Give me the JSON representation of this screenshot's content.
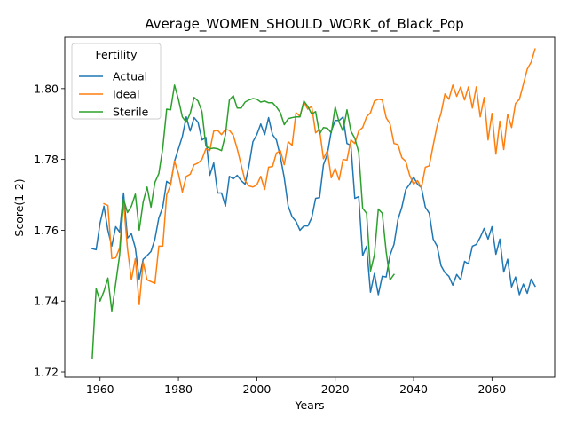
{
  "chart_data": {
    "type": "line",
    "title": "Average_WOMEN_SHOULD_WORK_of_Black_Pop",
    "xlabel": "Years",
    "ylabel": "Score(1-2)",
    "xlim": [
      1951,
      2076
    ],
    "ylim": [
      1.7185,
      1.8145
    ],
    "xticks": [
      1960,
      1980,
      2000,
      2020,
      2040,
      2060
    ],
    "yticks": [
      1.72,
      1.74,
      1.76,
      1.78,
      1.8
    ],
    "ytick_labels": [
      "1.72",
      "1.74",
      "1.76",
      "1.78",
      "1.80"
    ],
    "legend": {
      "title": "Fertility",
      "placement": "upper-left"
    },
    "grid": false,
    "series": [
      {
        "name": "Actual",
        "color": "#1f77b4",
        "points": [
          [
            1958,
            1.7548
          ],
          [
            1959,
            1.7545
          ],
          [
            1960,
            1.762
          ],
          [
            1961,
            1.7668
          ],
          [
            1962,
            1.76
          ],
          [
            1963,
            1.7555
          ],
          [
            1964,
            1.761
          ],
          [
            1965,
            1.7595
          ],
          [
            1966,
            1.7705
          ],
          [
            1967,
            1.7578
          ],
          [
            1968,
            1.759
          ],
          [
            1969,
            1.755
          ],
          [
            1970,
            1.7462
          ],
          [
            1971,
            1.7518
          ],
          [
            1972,
            1.7528
          ],
          [
            1973,
            1.754
          ],
          [
            1974,
            1.7575
          ],
          [
            1975,
            1.7635
          ],
          [
            1976,
            1.7665
          ],
          [
            1977,
            1.7738
          ],
          [
            1978,
            1.773
          ],
          [
            1979,
            1.7795
          ],
          [
            1980,
            1.783
          ],
          [
            1981,
            1.7865
          ],
          [
            1982,
            1.792
          ],
          [
            1983,
            1.788
          ],
          [
            1984,
            1.7918
          ],
          [
            1985,
            1.7905
          ],
          [
            1986,
            1.7855
          ],
          [
            1987,
            1.7862
          ],
          [
            1988,
            1.7755
          ],
          [
            1989,
            1.779
          ],
          [
            1990,
            1.7705
          ],
          [
            1991,
            1.7705
          ],
          [
            1992,
            1.7668
          ],
          [
            1993,
            1.7752
          ],
          [
            1994,
            1.7745
          ],
          [
            1995,
            1.7755
          ],
          [
            1996,
            1.774
          ],
          [
            1997,
            1.773
          ],
          [
            1998,
            1.7782
          ],
          [
            1999,
            1.785
          ],
          [
            2000,
            1.787
          ],
          [
            2001,
            1.79
          ],
          [
            2002,
            1.787
          ],
          [
            2003,
            1.7918
          ],
          [
            2004,
            1.787
          ],
          [
            2005,
            1.7855
          ],
          [
            2006,
            1.7808
          ],
          [
            2007,
            1.7748
          ],
          [
            2008,
            1.7668
          ],
          [
            2009,
            1.7638
          ],
          [
            2010,
            1.7625
          ],
          [
            2011,
            1.76
          ],
          [
            2012,
            1.7612
          ],
          [
            2013,
            1.7612
          ],
          [
            2014,
            1.7635
          ],
          [
            2015,
            1.769
          ],
          [
            2016,
            1.7692
          ],
          [
            2017,
            1.7785
          ],
          [
            2018,
            1.7815
          ],
          [
            2019,
            1.788
          ],
          [
            2020,
            1.791
          ],
          [
            2021,
            1.791
          ],
          [
            2022,
            1.792
          ],
          [
            2023,
            1.7845
          ],
          [
            2024,
            1.784
          ],
          [
            2025,
            1.769
          ],
          [
            2026,
            1.7695
          ],
          [
            2027,
            1.7528
          ],
          [
            2028,
            1.7555
          ],
          [
            2029,
            1.7425
          ],
          [
            2030,
            1.7478
          ],
          [
            2031,
            1.7418
          ],
          [
            2032,
            1.747
          ],
          [
            2033,
            1.7468
          ],
          [
            2034,
            1.753
          ],
          [
            2035,
            1.756
          ],
          [
            2036,
            1.763
          ],
          [
            2037,
            1.7665
          ],
          [
            2038,
            1.7715
          ],
          [
            2039,
            1.773
          ],
          [
            2040,
            1.775
          ],
          [
            2041,
            1.773
          ],
          [
            2042,
            1.772
          ],
          [
            2043,
            1.7665
          ],
          [
            2044,
            1.7648
          ],
          [
            2045,
            1.7575
          ],
          [
            2046,
            1.7555
          ],
          [
            2047,
            1.75
          ],
          [
            2048,
            1.748
          ],
          [
            2049,
            1.747
          ],
          [
            2050,
            1.7445
          ],
          [
            2051,
            1.7475
          ],
          [
            2052,
            1.746
          ],
          [
            2053,
            1.7512
          ],
          [
            2054,
            1.7505
          ],
          [
            2055,
            1.7555
          ],
          [
            2056,
            1.756
          ],
          [
            2057,
            1.758
          ],
          [
            2058,
            1.7605
          ],
          [
            2059,
            1.7575
          ],
          [
            2060,
            1.761
          ],
          [
            2061,
            1.7532
          ],
          [
            2062,
            1.7575
          ],
          [
            2063,
            1.7482
          ],
          [
            2064,
            1.7518
          ],
          [
            2065,
            1.744
          ],
          [
            2066,
            1.7468
          ],
          [
            2067,
            1.7418
          ],
          [
            2068,
            1.7448
          ],
          [
            2069,
            1.7422
          ],
          [
            2070,
            1.7462
          ],
          [
            2071,
            1.7442
          ]
        ]
      },
      {
        "name": "Ideal",
        "color": "#ff7f0e",
        "points": [
          [
            1961,
            1.7675
          ],
          [
            1962,
            1.767
          ],
          [
            1963,
            1.752
          ],
          [
            1964,
            1.7522
          ],
          [
            1965,
            1.755
          ],
          [
            1966,
            1.768
          ],
          [
            1967,
            1.7548
          ],
          [
            1968,
            1.746
          ],
          [
            1969,
            1.752
          ],
          [
            1970,
            1.739
          ],
          [
            1971,
            1.751
          ],
          [
            1972,
            1.746
          ],
          [
            1973,
            1.7455
          ],
          [
            1974,
            1.745
          ],
          [
            1975,
            1.7555
          ],
          [
            1976,
            1.7555
          ],
          [
            1977,
            1.77
          ],
          [
            1978,
            1.7728
          ],
          [
            1979,
            1.7795
          ],
          [
            1980,
            1.776
          ],
          [
            1981,
            1.7708
          ],
          [
            1982,
            1.7752
          ],
          [
            1983,
            1.7758
          ],
          [
            1984,
            1.7785
          ],
          [
            1985,
            1.779
          ],
          [
            1986,
            1.78
          ],
          [
            1987,
            1.783
          ],
          [
            1988,
            1.7825
          ],
          [
            1989,
            1.788
          ],
          [
            1990,
            1.7882
          ],
          [
            1991,
            1.787
          ],
          [
            1992,
            1.7885
          ],
          [
            1993,
            1.7882
          ],
          [
            1994,
            1.7868
          ],
          [
            1995,
            1.783
          ],
          [
            1996,
            1.7785
          ],
          [
            1997,
            1.774
          ],
          [
            1998,
            1.7725
          ],
          [
            1999,
            1.7722
          ],
          [
            2000,
            1.7728
          ],
          [
            2001,
            1.7752
          ],
          [
            2002,
            1.7715
          ],
          [
            2003,
            1.7778
          ],
          [
            2004,
            1.778
          ],
          [
            2005,
            1.7818
          ],
          [
            2006,
            1.7825
          ],
          [
            2007,
            1.7785
          ],
          [
            2008,
            1.785
          ],
          [
            2009,
            1.784
          ],
          [
            2010,
            1.7932
          ],
          [
            2011,
            1.7922
          ],
          [
            2012,
            1.7962
          ],
          [
            2013,
            1.7942
          ],
          [
            2014,
            1.795
          ],
          [
            2015,
            1.7875
          ],
          [
            2016,
            1.7885
          ],
          [
            2017,
            1.7802
          ],
          [
            2018,
            1.7825
          ],
          [
            2019,
            1.7748
          ],
          [
            2020,
            1.7775
          ],
          [
            2021,
            1.7742
          ],
          [
            2022,
            1.78
          ],
          [
            2023,
            1.7798
          ],
          [
            2024,
            1.7855
          ],
          [
            2025,
            1.7845
          ],
          [
            2026,
            1.788
          ],
          [
            2027,
            1.789
          ],
          [
            2028,
            1.792
          ],
          [
            2029,
            1.7932
          ],
          [
            2030,
            1.7965
          ],
          [
            2031,
            1.797
          ],
          [
            2032,
            1.7968
          ],
          [
            2033,
            1.7918
          ],
          [
            2034,
            1.79
          ],
          [
            2035,
            1.7845
          ],
          [
            2036,
            1.7842
          ],
          [
            2037,
            1.7805
          ],
          [
            2038,
            1.7795
          ],
          [
            2039,
            1.7755
          ],
          [
            2040,
            1.773
          ],
          [
            2041,
            1.774
          ],
          [
            2042,
            1.772
          ],
          [
            2043,
            1.7778
          ],
          [
            2044,
            1.7782
          ],
          [
            2045,
            1.784
          ],
          [
            2046,
            1.7895
          ],
          [
            2047,
            1.793
          ],
          [
            2048,
            1.7985
          ],
          [
            2049,
            1.797
          ],
          [
            2050,
            1.801
          ],
          [
            2051,
            1.7978
          ],
          [
            2052,
            1.8005
          ],
          [
            2053,
            1.7968
          ],
          [
            2054,
            1.8005
          ],
          [
            2055,
            1.7945
          ],
          [
            2056,
            1.8005
          ],
          [
            2057,
            1.792
          ],
          [
            2058,
            1.7975
          ],
          [
            2059,
            1.7855
          ],
          [
            2060,
            1.793
          ],
          [
            2061,
            1.7815
          ],
          [
            2062,
            1.7908
          ],
          [
            2063,
            1.7828
          ],
          [
            2064,
            1.7928
          ],
          [
            2065,
            1.789
          ],
          [
            2066,
            1.7958
          ],
          [
            2067,
            1.797
          ],
          [
            2068,
            1.8012
          ],
          [
            2069,
            1.8055
          ],
          [
            2070,
            1.8075
          ],
          [
            2071,
            1.8112
          ]
        ]
      },
      {
        "name": "Sterile",
        "color": "#2ca02c",
        "points": [
          [
            1958,
            1.7238
          ],
          [
            1959,
            1.7435
          ],
          [
            1960,
            1.74
          ],
          [
            1961,
            1.7428
          ],
          [
            1962,
            1.7465
          ],
          [
            1963,
            1.7372
          ],
          [
            1964,
            1.745
          ],
          [
            1965,
            1.753
          ],
          [
            1966,
            1.7688
          ],
          [
            1967,
            1.765
          ],
          [
            1968,
            1.7668
          ],
          [
            1969,
            1.7702
          ],
          [
            1970,
            1.76
          ],
          [
            1971,
            1.768
          ],
          [
            1972,
            1.7722
          ],
          [
            1973,
            1.7665
          ],
          [
            1974,
            1.7735
          ],
          [
            1975,
            1.776
          ],
          [
            1976,
            1.7832
          ],
          [
            1977,
            1.7942
          ],
          [
            1978,
            1.794
          ],
          [
            1979,
            1.801
          ],
          [
            1980,
            1.797
          ],
          [
            1981,
            1.792
          ],
          [
            1982,
            1.7905
          ],
          [
            1983,
            1.793
          ],
          [
            1984,
            1.7975
          ],
          [
            1985,
            1.7965
          ],
          [
            1986,
            1.7935
          ],
          [
            1987,
            1.7838
          ],
          [
            1988,
            1.783
          ],
          [
            1989,
            1.7832
          ],
          [
            1990,
            1.783
          ],
          [
            1991,
            1.7825
          ],
          [
            1992,
            1.787
          ],
          [
            1993,
            1.7968
          ],
          [
            1994,
            1.798
          ],
          [
            1995,
            1.7945
          ],
          [
            1996,
            1.7945
          ],
          [
            1997,
            1.7962
          ],
          [
            1998,
            1.7968
          ],
          [
            1999,
            1.7972
          ],
          [
            2000,
            1.797
          ],
          [
            2001,
            1.7962
          ],
          [
            2002,
            1.7965
          ],
          [
            2003,
            1.796
          ],
          [
            2004,
            1.796
          ],
          [
            2005,
            1.7948
          ],
          [
            2006,
            1.7932
          ],
          [
            2007,
            1.7898
          ],
          [
            2008,
            1.7915
          ],
          [
            2009,
            1.7918
          ],
          [
            2010,
            1.792
          ],
          [
            2011,
            1.792
          ],
          [
            2012,
            1.7965
          ],
          [
            2013,
            1.795
          ],
          [
            2014,
            1.7928
          ],
          [
            2015,
            1.7935
          ],
          [
            2016,
            1.7872
          ],
          [
            2017,
            1.789
          ],
          [
            2018,
            1.7888
          ],
          [
            2019,
            1.7875
          ],
          [
            2020,
            1.7948
          ],
          [
            2021,
            1.7905
          ],
          [
            2022,
            1.788
          ],
          [
            2023,
            1.794
          ],
          [
            2024,
            1.788
          ],
          [
            2025,
            1.786
          ],
          [
            2026,
            1.782
          ],
          [
            2027,
            1.7662
          ],
          [
            2028,
            1.7648
          ],
          [
            2029,
            1.7485
          ],
          [
            2030,
            1.753
          ],
          [
            2031,
            1.766
          ],
          [
            2032,
            1.7648
          ],
          [
            2033,
            1.754
          ],
          [
            2034,
            1.746
          ],
          [
            2035,
            1.7475
          ]
        ]
      }
    ]
  }
}
